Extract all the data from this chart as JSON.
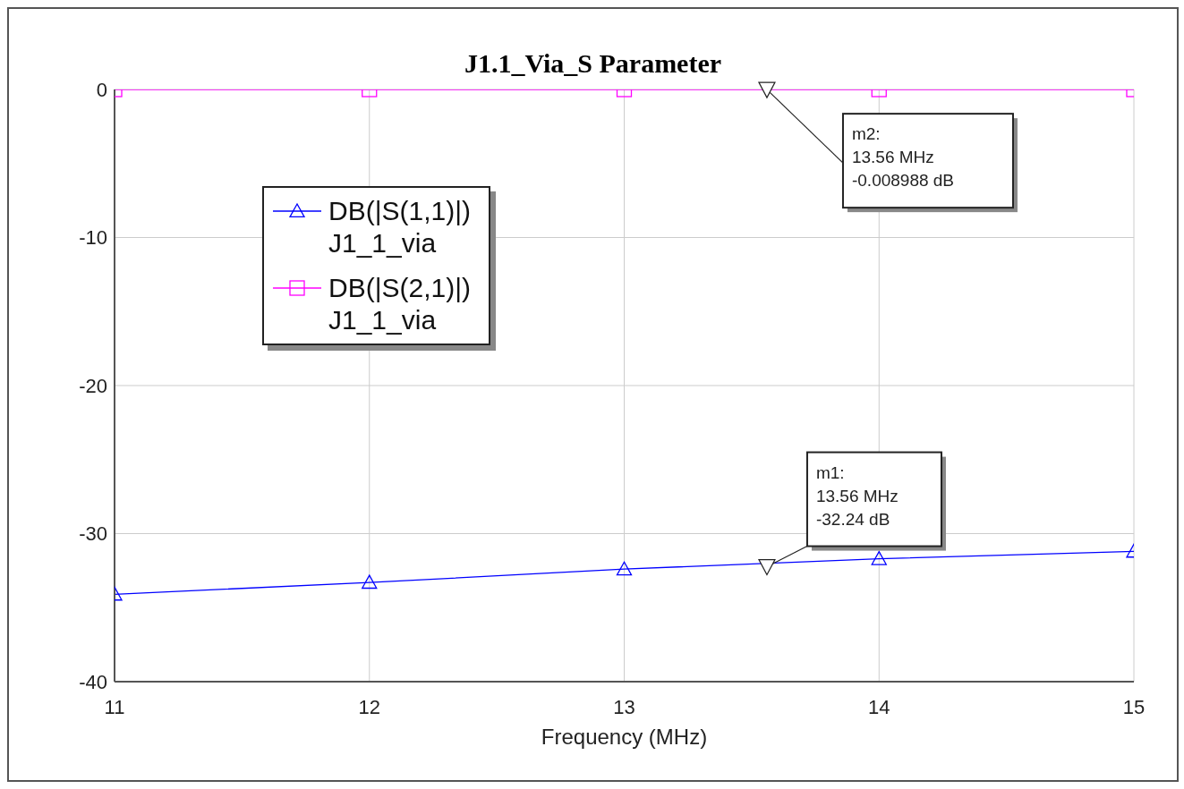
{
  "chart_data": {
    "type": "line",
    "title": "J1.1_Via_S Parameter",
    "xlabel": "Frequency (MHz)",
    "x": [
      11,
      12,
      13,
      14,
      15
    ],
    "series": [
      {
        "name": "DB(|S(1,1)|)\nJ1_1_via",
        "color": "#0000ff",
        "marker": "triangle",
        "values": [
          -34.1,
          -33.3,
          -32.4,
          -31.7,
          -31.2
        ]
      },
      {
        "name": "DB(|S(2,1)|)\nJ1_1_via",
        "color": "#ff00ff",
        "marker": "square",
        "values": [
          0,
          0,
          0,
          0,
          0
        ]
      }
    ],
    "xlim": [
      11,
      15
    ],
    "xticks": [
      11,
      12,
      13,
      14,
      15
    ],
    "ylim": [
      -40,
      0
    ],
    "yticks": [
      -40,
      -30,
      -20,
      -10,
      0
    ],
    "grid": true,
    "legend": "top left",
    "annotations": [
      {
        "text": "m1:\n13.56 MHz\n-32.24 dB",
        "x": 13.56,
        "y": -32.24
      },
      {
        "text": "m2:\n13.56 MHz\n-0.008988 dB",
        "x": 13.56,
        "y": -0.008988
      }
    ]
  }
}
